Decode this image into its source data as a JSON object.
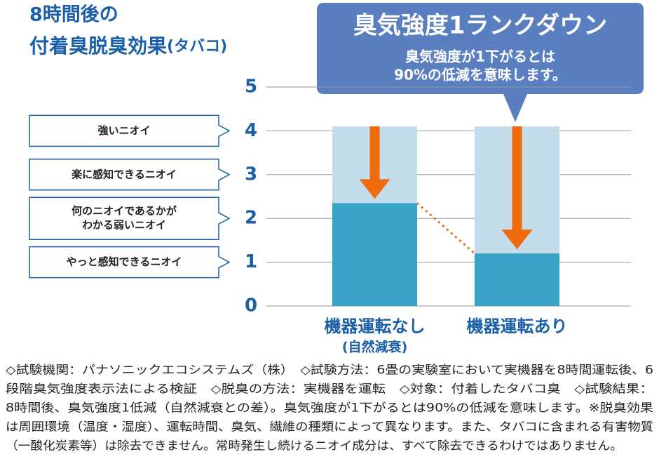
{
  "chart_data": {
    "type": "bar",
    "title": [
      "8時間後の",
      "付着臭脱臭効果"
    ],
    "title_suffix": "(タバコ)",
    "callout": {
      "title": "臭気強度1ランクダウン",
      "lines": [
        "臭気強度が1下がるとは",
        "90%の低減を意味します。"
      ]
    },
    "categories": [
      [
        "機器運転なし",
        "(自然減衰)"
      ],
      [
        "機器運転あり"
      ]
    ],
    "series": [
      {
        "color": "#c3dcea",
        "values": [
          4.1,
          4.1
        ]
      },
      {
        "color": "#3aa3c8",
        "values": [
          2.35,
          1.2
        ]
      }
    ],
    "arrow_color": "#f06a0e",
    "ylim": [
      0,
      5
    ],
    "yticks": [
      0,
      1,
      2,
      3,
      4,
      5
    ],
    "grid": true,
    "level_labels": [
      {
        "value": 4,
        "lines": [
          "強いニオイ"
        ]
      },
      {
        "value": 3,
        "lines": [
          "楽に感知できるニオイ"
        ]
      },
      {
        "value": 2,
        "lines": [
          "何のニオイであるかが",
          "わかる弱いニオイ"
        ]
      },
      {
        "value": 1,
        "lines": [
          "やっと感知できるニオイ"
        ]
      }
    ]
  },
  "notes": [
    "◇試験機関：パナソニックエコシステムズ（株）　◇試験方法：6畳の実験室において実機器を8時間運転後、6",
    "段階臭気強度表示法による検証　◇脱臭の方法：実機器を運転　◇対象：付着したタバコ臭　◇試験結果：",
    "8時間後、臭気強度1低減（自然減衰との差）。臭気強度が1下がるとは90%の低減を意味します。※脱臭効果",
    "は周囲環境（温度・湿度）、運転時間、臭気、繊維の種類によって異なります。また、タバコに含まれる有害物質",
    "（一酸化炭素等）は除去できません。常時発生し続けるニオイ成分は、すべて除去できるわけではありません。"
  ]
}
